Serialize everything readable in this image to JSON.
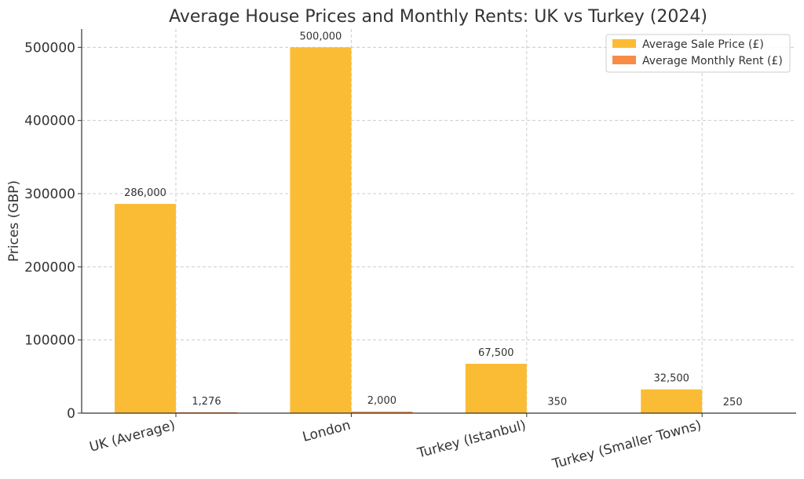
{
  "chart_data": {
    "type": "bar",
    "title": "Average House Prices and Monthly Rents: UK vs Turkey (2024)",
    "xlabel": "",
    "ylabel": "Prices (GBP)",
    "categories": [
      "UK (Average)",
      "London",
      "Turkey (Istanbul)",
      "Turkey (Smaller Towns)"
    ],
    "series": [
      {
        "name": "Average Sale Price (£)",
        "color": "#fbbc35",
        "values": [
          286000,
          500000,
          67500,
          32500
        ],
        "labels": [
          "286,000",
          "500,000",
          "67,500",
          "32,500"
        ]
      },
      {
        "name": "Average Monthly Rent (£)",
        "color": "#f78c46",
        "values": [
          1276,
          2000,
          350,
          250
        ],
        "labels": [
          "1,276",
          "2,000",
          "350",
          "250"
        ]
      }
    ],
    "ylim": [
      0,
      525000
    ],
    "yticks": [
      0,
      100000,
      200000,
      300000,
      400000,
      500000
    ],
    "ytick_labels": [
      "0",
      "100000",
      "200000",
      "300000",
      "400000",
      "500000"
    ],
    "grid": true,
    "legend_position": "top-right"
  }
}
